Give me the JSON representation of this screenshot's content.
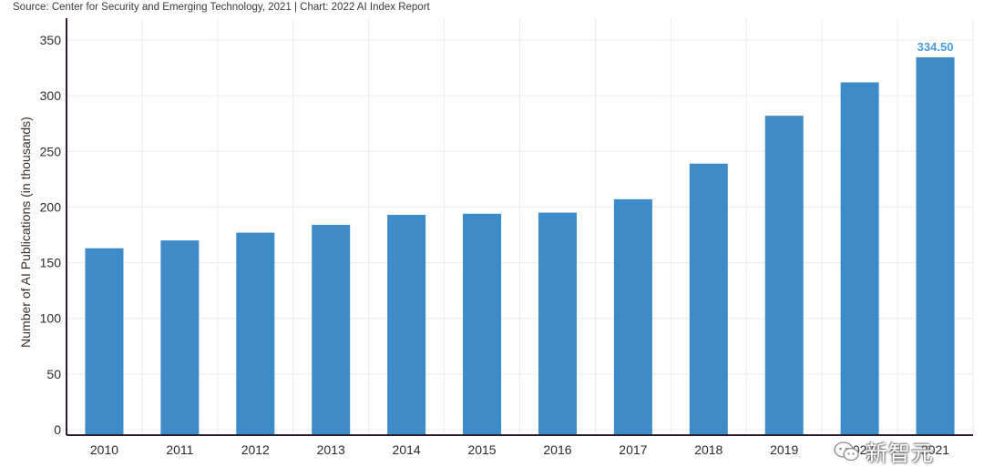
{
  "source_line": "Source: Center for Security and Emerging Technology, 2021 | Chart: 2022 AI Index Report",
  "watermark": {
    "icon": "wechat-icon",
    "text": "新智元"
  },
  "colors": {
    "bar": "#3d8bc9",
    "data_label": "#4a9ad8",
    "grid": "#ececec",
    "axis": "#2a1f2d"
  },
  "chart_data": {
    "type": "bar",
    "title": "",
    "xlabel": "",
    "ylabel": "Number of AI Publications (in thousands)",
    "categories": [
      "2010",
      "2011",
      "2012",
      "2013",
      "2014",
      "2015",
      "2016",
      "2017",
      "2018",
      "2019",
      "2020",
      "2021"
    ],
    "values": [
      163,
      170,
      177,
      184,
      193,
      194,
      195,
      207,
      239,
      282,
      312,
      334.5
    ],
    "ylim": [
      0,
      350
    ],
    "yticks": [
      0,
      50,
      100,
      150,
      200,
      250,
      300,
      350
    ],
    "grid": true,
    "data_labels": [
      {
        "category": "2021",
        "text": "334.50"
      }
    ]
  }
}
